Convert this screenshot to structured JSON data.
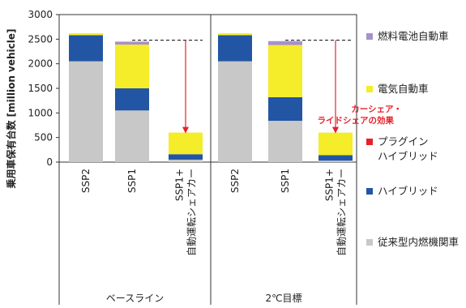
{
  "chart_data": {
    "type": "bar",
    "stacked": true,
    "ylabel": "乗用車保有台数 [million vehicle]",
    "ylim": [
      0,
      3000
    ],
    "yticks": [
      0,
      500,
      1000,
      1500,
      2000,
      2500,
      3000
    ],
    "groups": [
      {
        "label": "ベースライン",
        "categories": [
          "SSP2",
          "SSP1",
          "SSP1+\n自動運転シェアカー"
        ]
      },
      {
        "label": "2℃目標",
        "categories": [
          "SSP2",
          "SSP1",
          "SSP1+\n自動運転シェアカー"
        ]
      }
    ],
    "categories": [
      "SSP2",
      "SSP1",
      "SSP1+ 自動運転シェアカー",
      "SSP2",
      "SSP1",
      "SSP1+ 自動運転シェアカー"
    ],
    "series": [
      {
        "name": "従来型内燃機関車",
        "color": "#c8c8c8",
        "values": [
          2050,
          1050,
          50,
          2050,
          840,
          30
        ]
      },
      {
        "name": "ハイブリッド",
        "color": "#2255a4",
        "values": [
          530,
          450,
          110,
          530,
          480,
          110
        ]
      },
      {
        "name": "プラグイン\nハイブリッド",
        "color": "#e8202a",
        "values": [
          0,
          0,
          0,
          0,
          0,
          0
        ]
      },
      {
        "name": "電気自動車",
        "color": "#f5ec2a",
        "values": [
          40,
          890,
          440,
          40,
          1060,
          460
        ]
      },
      {
        "name": "燃料電池自動車",
        "color": "#a890cc",
        "values": [
          0,
          60,
          0,
          0,
          80,
          0
        ]
      }
    ],
    "legend_order": [
      "燃料電池自動車",
      "電気自動車",
      "プラグイン\nハイブリッド",
      "ハイブリッド",
      "従来型内燃機関車"
    ],
    "legend_position": "right",
    "annotation": {
      "text": "カーシェア・\nライドシェアの効果",
      "color": "#e8202a",
      "reference_level": 2480,
      "arrows": [
        {
          "from_category_index": 1,
          "to_category_index": 2
        },
        {
          "from_category_index": 4,
          "to_category_index": 5
        }
      ]
    },
    "grid": false
  }
}
